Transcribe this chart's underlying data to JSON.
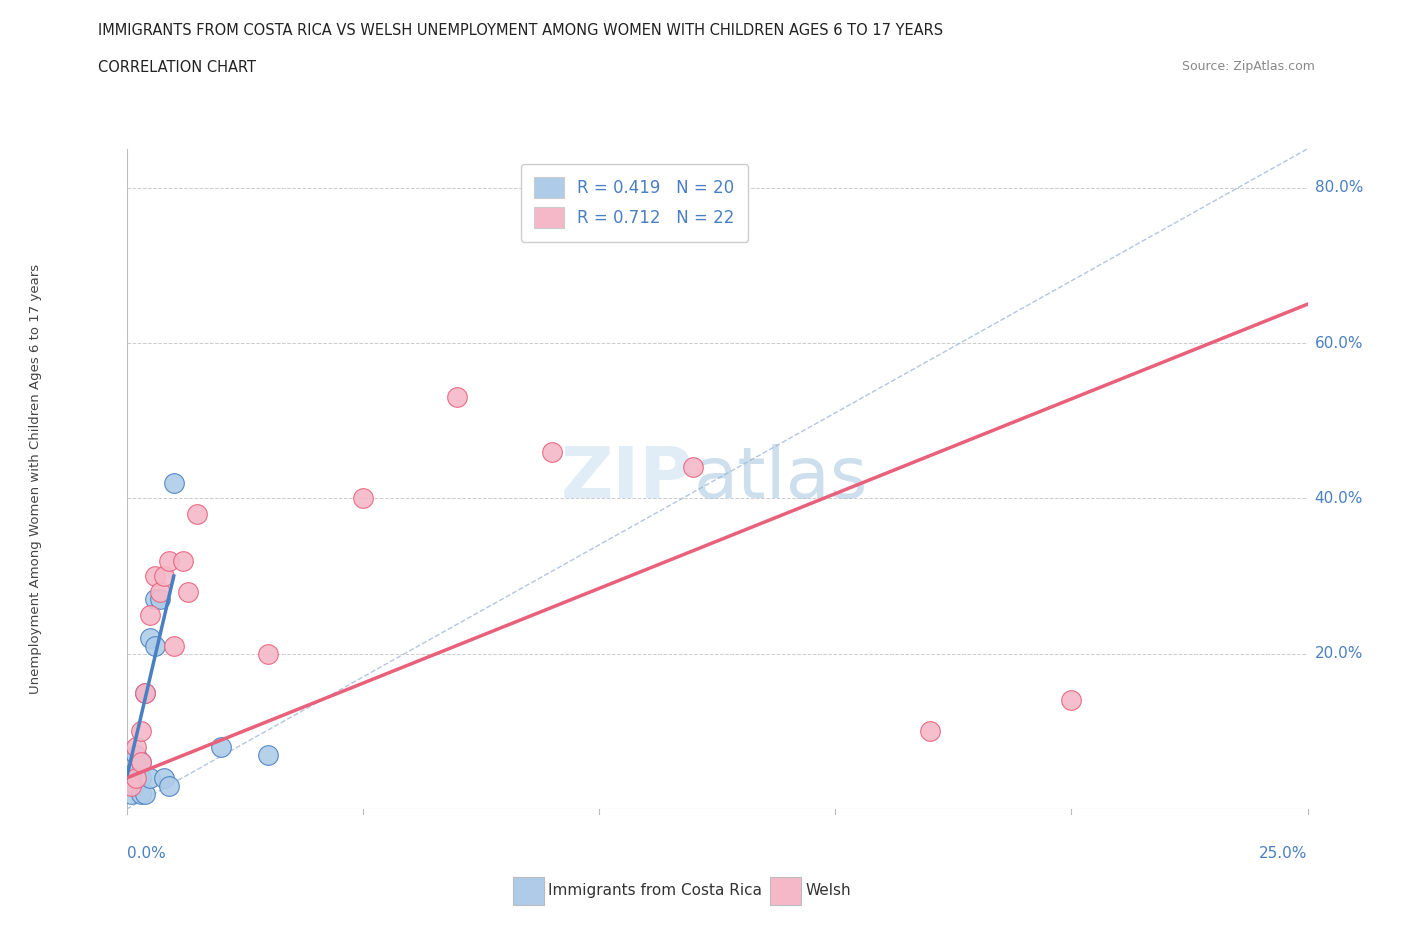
{
  "title": "IMMIGRANTS FROM COSTA RICA VS WELSH UNEMPLOYMENT AMONG WOMEN WITH CHILDREN AGES 6 TO 17 YEARS",
  "subtitle": "CORRELATION CHART",
  "source": "Source: ZipAtlas.com",
  "xlabel_bottom_left": "0.0%",
  "xlabel_bottom_right": "25.0%",
  "ylabel_right": [
    "80.0%",
    "60.0%",
    "40.0%",
    "20.0%"
  ],
  "ylabel_left": "Unemployment Among Women with Children Ages 6 to 17 years",
  "legend_blue_label": "R = 0.419   N = 20",
  "legend_pink_label": "R = 0.712   N = 22",
  "legend_label_blue": "Immigrants from Costa Rica",
  "legend_label_pink": "Welsh",
  "blue_color": "#aecce8",
  "pink_color": "#f5b8c8",
  "blue_line_color": "#4a7fc1",
  "pink_line_color": "#e8607a",
  "dashed_line_color": "#a0b8d8",
  "watermark_zip": "ZIP",
  "watermark_atlas": "atlas",
  "blue_scatter_x": [
    0.001,
    0.001,
    0.002,
    0.002,
    0.002,
    0.003,
    0.003,
    0.003,
    0.004,
    0.004,
    0.005,
    0.005,
    0.006,
    0.006,
    0.007,
    0.008,
    0.009,
    0.01,
    0.02,
    0.03
  ],
  "blue_scatter_y": [
    0.02,
    0.04,
    0.03,
    0.05,
    0.07,
    0.02,
    0.04,
    0.06,
    0.02,
    0.15,
    0.04,
    0.22,
    0.27,
    0.21,
    0.27,
    0.04,
    0.03,
    0.42,
    0.08,
    0.07
  ],
  "pink_scatter_x": [
    0.001,
    0.002,
    0.002,
    0.003,
    0.003,
    0.004,
    0.005,
    0.006,
    0.007,
    0.008,
    0.009,
    0.01,
    0.012,
    0.013,
    0.015,
    0.03,
    0.05,
    0.07,
    0.09,
    0.12,
    0.17,
    0.2
  ],
  "pink_scatter_y": [
    0.03,
    0.04,
    0.08,
    0.06,
    0.1,
    0.15,
    0.25,
    0.3,
    0.28,
    0.3,
    0.32,
    0.21,
    0.32,
    0.28,
    0.38,
    0.2,
    0.4,
    0.53,
    0.46,
    0.44,
    0.1,
    0.14
  ],
  "xlim": [
    0.0,
    0.25
  ],
  "ylim": [
    0.0,
    0.85
  ],
  "blue_regline_x": [
    0.0,
    0.01
  ],
  "blue_regline_y": [
    0.04,
    0.3
  ],
  "pink_regline_x": [
    0.0,
    0.25
  ],
  "pink_regline_y": [
    0.04,
    0.65
  ],
  "ref_line_x": [
    0.0,
    0.25
  ],
  "ref_line_y": [
    0.0,
    0.85
  ],
  "ytick_positions": [
    0.2,
    0.4,
    0.6,
    0.8
  ],
  "xtick_positions": [
    0.0,
    0.05,
    0.1,
    0.15,
    0.2,
    0.25
  ]
}
